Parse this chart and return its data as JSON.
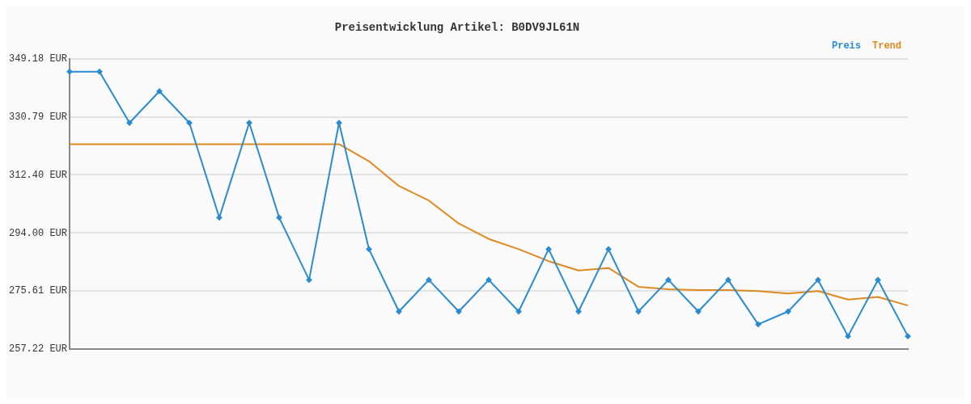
{
  "chart_data": {
    "type": "line",
    "title": "Preisentwicklung Artikel: B0DV9JL61N",
    "categories": [
      null,
      null,
      null,
      null,
      null,
      null,
      null,
      null,
      null,
      null,
      null,
      null,
      null,
      null,
      null,
      null,
      null,
      null,
      null,
      null,
      null,
      null,
      null,
      null,
      null,
      null,
      null,
      null,
      null
    ],
    "series": [
      {
        "name": "Preis",
        "color": "#2a8bd0",
        "marker": "diamond",
        "values": [
          345.12,
          345.12,
          328.89,
          338.9,
          328.89,
          298.87,
          328.89,
          298.87,
          279.13,
          328.89,
          288.86,
          269.12,
          279.13,
          269.12,
          279.13,
          269.12,
          288.86,
          269.12,
          288.86,
          269.12,
          279.13,
          269.12,
          279.13,
          265.06,
          269.12,
          279.13,
          261.28,
          279.13,
          261.28
        ]
      },
      {
        "name": "Trend",
        "color": "#e0891e",
        "marker": "none",
        "values": [
          322.13,
          322.13,
          322.13,
          322.13,
          322.13,
          322.13,
          322.13,
          322.13,
          322.13,
          322.13,
          316.72,
          308.88,
          304.28,
          296.98,
          292.11,
          288.86,
          285.08,
          282.1,
          282.91,
          276.96,
          276.15,
          275.88,
          275.88,
          275.61,
          274.8,
          275.61,
          272.91,
          273.72,
          271.01
        ]
      }
    ],
    "ylim": [
      257.22,
      349.18
    ],
    "yticks": [
      {
        "value": 257.22,
        "label": "257.22 EUR"
      },
      {
        "value": 275.61,
        "label": "275.61 EUR"
      },
      {
        "value": 294.0,
        "label": "294.00 EUR"
      },
      {
        "value": 312.4,
        "label": "312.40 EUR"
      },
      {
        "value": 330.79,
        "label": "330.79 EUR"
      },
      {
        "value": 349.18,
        "label": "349.18 EUR"
      }
    ],
    "grid": "y",
    "legend": "top right",
    "tick_labels": "y",
    "line_style": "solid"
  }
}
